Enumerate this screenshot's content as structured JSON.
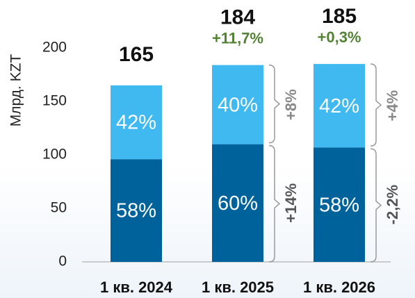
{
  "chart_data": {
    "type": "bar",
    "stacked": true,
    "ylabel": "Млрд. KZT",
    "categories": [
      "1 кв. 2024",
      "1 кв. 2025",
      "1 кв. 2026"
    ],
    "ylim": [
      0,
      200
    ],
    "yticks": [
      0,
      50,
      100,
      150,
      200
    ],
    "series": [
      {
        "color": "#00629b",
        "values": [
          96,
          110,
          107
        ],
        "share_labels": [
          "58%",
          "60%",
          "58%"
        ]
      },
      {
        "color": "#3fb9f0",
        "values": [
          69,
          74,
          78
        ],
        "share_labels": [
          "42%",
          "40%",
          "42%"
        ]
      }
    ],
    "totals": [
      165,
      184,
      185
    ],
    "growth_labels": [
      null,
      "+11,7%",
      "+0,3%"
    ],
    "top_change_labels": [
      null,
      "+8%",
      "+4%"
    ],
    "bottom_change_labels": [
      null,
      "+14%",
      "-2,2%"
    ]
  }
}
